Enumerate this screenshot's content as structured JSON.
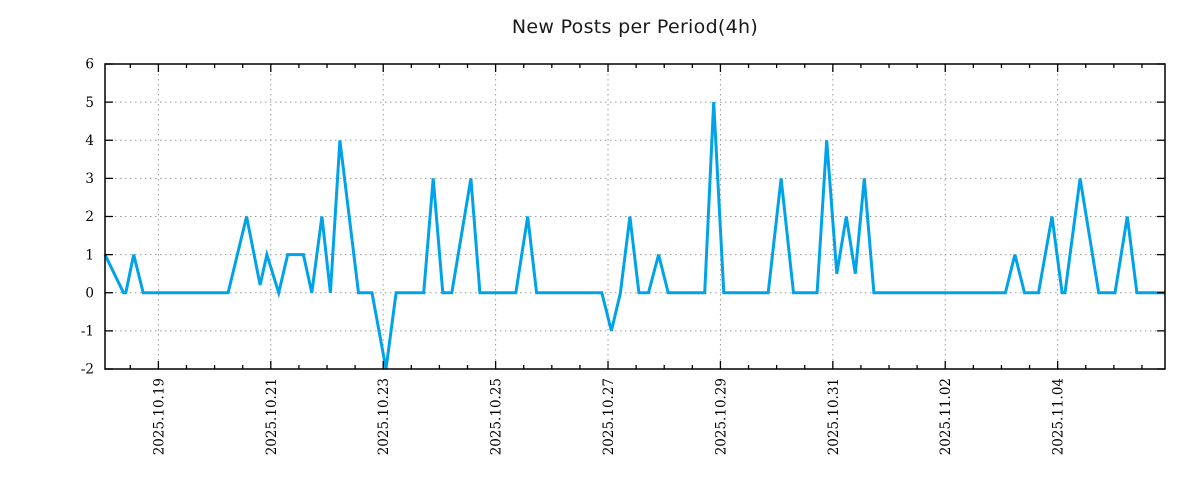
{
  "chart_data": {
    "type": "line",
    "title": "New Posts per Period(4h)",
    "series_name": "new posts per 4h period",
    "line_color": "#00a3e8",
    "line_width": 3,
    "background": "#ffffff",
    "grid": true,
    "grid_color": "#9a9a9a",
    "axis_color": "#000000",
    "legend": "none",
    "x_unit": "days relative to 2025.10.19 00:00 (4-hour sample periods)",
    "x_range": [
      -0.95,
      17.91
    ],
    "y_axis": {
      "min": -2,
      "max": 6,
      "tick_step": 1,
      "tick_labels": [
        "-2",
        "-1",
        "0",
        "1",
        "2",
        "3",
        "4",
        "5",
        "6"
      ]
    },
    "x_ticks": [
      {
        "day": 0,
        "label": "2025.10.19"
      },
      {
        "day": 2,
        "label": "2025.10.21"
      },
      {
        "day": 4,
        "label": "2025.10.23"
      },
      {
        "day": 6,
        "label": "2025.10.25"
      },
      {
        "day": 8,
        "label": "2025.10.27"
      },
      {
        "day": 10,
        "label": "2025.10.29"
      },
      {
        "day": 12,
        "label": "2025.10.31"
      },
      {
        "day": 14,
        "label": "2025.11.02"
      },
      {
        "day": 16,
        "label": "2025.11.04"
      }
    ],
    "minor_tick_step_days": 0.5,
    "points": [
      [
        -0.95,
        1
      ],
      [
        -0.62,
        0
      ],
      [
        -0.58,
        0
      ],
      [
        -0.44,
        1
      ],
      [
        -0.27,
        0
      ],
      [
        1.24,
        0
      ],
      [
        1.57,
        2
      ],
      [
        1.81,
        0.2
      ],
      [
        1.93,
        1
      ],
      [
        2.14,
        0
      ],
      [
        2.3,
        1
      ],
      [
        2.58,
        1
      ],
      [
        2.73,
        0
      ],
      [
        2.91,
        2
      ],
      [
        3.06,
        0
      ],
      [
        3.23,
        4
      ],
      [
        3.56,
        0
      ],
      [
        3.8,
        0
      ],
      [
        4.05,
        -2
      ],
      [
        4.23,
        0
      ],
      [
        4.72,
        0
      ],
      [
        4.89,
        3
      ],
      [
        5.06,
        0
      ],
      [
        5.22,
        0
      ],
      [
        5.56,
        3
      ],
      [
        5.72,
        0
      ],
      [
        6.36,
        0
      ],
      [
        6.57,
        2
      ],
      [
        6.73,
        0
      ],
      [
        7.89,
        0
      ],
      [
        8.06,
        -1
      ],
      [
        8.22,
        0
      ],
      [
        8.39,
        2
      ],
      [
        8.55,
        0
      ],
      [
        8.72,
        0
      ],
      [
        8.9,
        1
      ],
      [
        9.07,
        0
      ],
      [
        9.72,
        0
      ],
      [
        9.88,
        5
      ],
      [
        10.06,
        0
      ],
      [
        10.85,
        0
      ],
      [
        11.08,
        3
      ],
      [
        11.3,
        0
      ],
      [
        11.72,
        0
      ],
      [
        11.89,
        4
      ],
      [
        12.07,
        0.5
      ],
      [
        12.24,
        2
      ],
      [
        12.4,
        0.5
      ],
      [
        12.56,
        3
      ],
      [
        12.73,
        0
      ],
      [
        15.07,
        0
      ],
      [
        15.24,
        1
      ],
      [
        15.41,
        0
      ],
      [
        15.66,
        0
      ],
      [
        15.9,
        2
      ],
      [
        16.08,
        0
      ],
      [
        16.13,
        0
      ],
      [
        16.4,
        3
      ],
      [
        16.73,
        0
      ],
      [
        17.02,
        0
      ],
      [
        17.24,
        2
      ],
      [
        17.41,
        0
      ],
      [
        17.91,
        0
      ]
    ]
  }
}
